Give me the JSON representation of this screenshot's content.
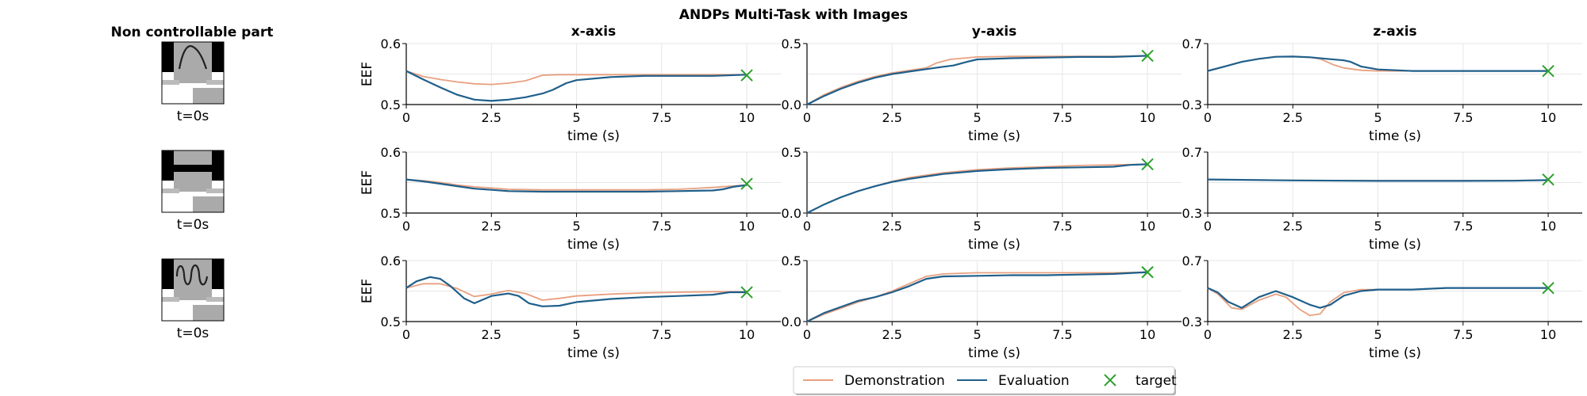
{
  "figure_title": "ANDPs Multi-Task with Images",
  "left_panel": {
    "title": "Non controllable part",
    "tiles": [
      {
        "caption": "t=0s",
        "image": "handwritten-arch"
      },
      {
        "caption": "t=0s",
        "image": "blank-letter"
      },
      {
        "caption": "t=0s",
        "image": "handwritten-wave"
      }
    ]
  },
  "colors": {
    "demonstration": "#e8a07f",
    "evaluation": "#1f5f8b",
    "target": "#2ca02c"
  },
  "legend": {
    "items": [
      {
        "label": "Demonstration",
        "key": "demonstration",
        "marker": "line"
      },
      {
        "label": "Evaluation",
        "key": "evaluation",
        "marker": "line"
      },
      {
        "label": "target",
        "key": "target",
        "marker": "x"
      }
    ]
  },
  "chart_data": [
    {
      "type": "line",
      "row": 0,
      "title": "x-axis",
      "ylabel": "EEF",
      "xlabel": "time (s)",
      "xlim": [
        0,
        11
      ],
      "ylim": [
        0.5,
        0.6
      ],
      "xticks": [
        "0",
        "2.5",
        "5",
        "7.5",
        "10"
      ],
      "yticks": [
        "0.5",
        "0.6"
      ],
      "grid": true,
      "series": [
        {
          "name": "Demonstration",
          "x": [
            0,
            0.5,
            1,
            1.5,
            2,
            2.5,
            3,
            3.5,
            4,
            4.5,
            5,
            6,
            7,
            8,
            9,
            10
          ],
          "y": [
            0.555,
            0.546,
            0.541,
            0.537,
            0.534,
            0.533,
            0.535,
            0.539,
            0.548,
            0.549,
            0.549,
            0.549,
            0.549,
            0.549,
            0.549,
            0.549
          ]
        },
        {
          "name": "Evaluation",
          "x": [
            0,
            0.5,
            1,
            1.5,
            2,
            2.5,
            3,
            3.5,
            4,
            4.3,
            4.7,
            5,
            6,
            7,
            8,
            9,
            10
          ],
          "y": [
            0.555,
            0.541,
            0.528,
            0.516,
            0.508,
            0.506,
            0.508,
            0.512,
            0.518,
            0.524,
            0.535,
            0.54,
            0.545,
            0.547,
            0.547,
            0.547,
            0.549
          ]
        }
      ],
      "target": {
        "x": 10,
        "y": 0.548
      }
    },
    {
      "type": "line",
      "row": 0,
      "title": "y-axis",
      "xlabel": "time (s)",
      "xlim": [
        0,
        11
      ],
      "ylim": [
        0.0,
        0.5
      ],
      "xticks": [
        "0",
        "2.5",
        "5",
        "7.5",
        "10"
      ],
      "yticks": [
        "0.0",
        "0.5"
      ],
      "grid": true,
      "series": [
        {
          "name": "Demonstration",
          "x": [
            0,
            0.5,
            1,
            1.5,
            2,
            2.5,
            3,
            3.5,
            3.8,
            4.2,
            5,
            6,
            7,
            8,
            9,
            10
          ],
          "y": [
            0.0,
            0.08,
            0.14,
            0.19,
            0.23,
            0.26,
            0.28,
            0.3,
            0.34,
            0.37,
            0.39,
            0.395,
            0.395,
            0.395,
            0.395,
            0.4
          ]
        },
        {
          "name": "Evaluation",
          "x": [
            0,
            0.5,
            1,
            1.5,
            2,
            2.5,
            3,
            3.5,
            4,
            4.3,
            4.7,
            5,
            6,
            7,
            8,
            9,
            10
          ],
          "y": [
            0.0,
            0.07,
            0.13,
            0.18,
            0.22,
            0.25,
            0.27,
            0.29,
            0.31,
            0.32,
            0.35,
            0.37,
            0.38,
            0.385,
            0.39,
            0.39,
            0.4
          ]
        }
      ],
      "target": {
        "x": 10,
        "y": 0.4
      }
    },
    {
      "type": "line",
      "row": 0,
      "title": "z-axis",
      "xlabel": "time (s)",
      "xlim": [
        0,
        11
      ],
      "ylim": [
        0.3,
        0.7
      ],
      "xticks": [
        "0",
        "2.5",
        "5",
        "7.5",
        "10"
      ],
      "yticks": [
        "0.3",
        "0.7"
      ],
      "grid": true,
      "series": [
        {
          "name": "Demonstration",
          "x": [
            0,
            0.5,
            1,
            1.5,
            2,
            2.5,
            3,
            3.3,
            3.7,
            4,
            4.5,
            5,
            6,
            7,
            8,
            9,
            10
          ],
          "y": [
            0.52,
            0.55,
            0.58,
            0.6,
            0.613,
            0.615,
            0.61,
            0.6,
            0.56,
            0.54,
            0.525,
            0.52,
            0.52,
            0.52,
            0.52,
            0.52,
            0.52
          ]
        },
        {
          "name": "Evaluation",
          "x": [
            0,
            0.5,
            1,
            1.5,
            2,
            2.5,
            3,
            3.5,
            4,
            4.2,
            4.5,
            5,
            6,
            7,
            8,
            9,
            10
          ],
          "y": [
            0.52,
            0.55,
            0.58,
            0.6,
            0.613,
            0.615,
            0.61,
            0.6,
            0.59,
            0.58,
            0.55,
            0.53,
            0.52,
            0.52,
            0.52,
            0.52,
            0.52
          ]
        }
      ],
      "target": {
        "x": 10,
        "y": 0.52
      }
    },
    {
      "type": "line",
      "row": 1,
      "title": "",
      "ylabel": "EEF",
      "xlabel": "time (s)",
      "xlim": [
        0,
        11
      ],
      "ylim": [
        0.5,
        0.6
      ],
      "xticks": [
        "0",
        "2.5",
        "5",
        "7.5",
        "10"
      ],
      "yticks": [
        "0.5",
        "0.6"
      ],
      "grid": true,
      "series": [
        {
          "name": "Demonstration",
          "x": [
            0,
            0.5,
            1,
            1.5,
            2,
            2.5,
            3,
            4,
            5,
            6,
            7,
            8,
            9,
            10
          ],
          "y": [
            0.555,
            0.553,
            0.55,
            0.546,
            0.543,
            0.541,
            0.539,
            0.538,
            0.538,
            0.538,
            0.538,
            0.539,
            0.542,
            0.546
          ]
        },
        {
          "name": "Evaluation",
          "x": [
            0,
            0.5,
            1,
            1.5,
            2,
            2.5,
            3,
            4,
            5,
            6,
            7,
            8,
            9,
            9.3,
            9.6,
            10
          ],
          "y": [
            0.555,
            0.552,
            0.548,
            0.544,
            0.54,
            0.538,
            0.536,
            0.535,
            0.535,
            0.535,
            0.535,
            0.536,
            0.537,
            0.539,
            0.543,
            0.546
          ]
        }
      ],
      "target": {
        "x": 10,
        "y": 0.548
      }
    },
    {
      "type": "line",
      "row": 1,
      "title": "",
      "xlabel": "time (s)",
      "xlim": [
        0,
        11
      ],
      "ylim": [
        0.0,
        0.5
      ],
      "xticks": [
        "0",
        "2.5",
        "5",
        "7.5",
        "10"
      ],
      "yticks": [
        "0.0",
        "0.5"
      ],
      "grid": true,
      "series": [
        {
          "name": "Demonstration",
          "x": [
            0,
            0.5,
            1,
            1.5,
            2,
            2.5,
            3,
            4,
            5,
            6,
            7,
            8,
            9,
            10
          ],
          "y": [
            0.0,
            0.07,
            0.13,
            0.18,
            0.22,
            0.26,
            0.29,
            0.33,
            0.355,
            0.37,
            0.38,
            0.39,
            0.395,
            0.4
          ]
        },
        {
          "name": "Evaluation",
          "x": [
            0,
            0.5,
            1,
            1.5,
            2,
            2.5,
            3,
            4,
            5,
            6,
            7,
            8,
            9,
            9.5,
            10
          ],
          "y": [
            0.0,
            0.07,
            0.13,
            0.18,
            0.22,
            0.255,
            0.28,
            0.32,
            0.345,
            0.36,
            0.37,
            0.375,
            0.38,
            0.395,
            0.4
          ]
        }
      ],
      "target": {
        "x": 10,
        "y": 0.4
      }
    },
    {
      "type": "line",
      "row": 1,
      "title": "",
      "xlabel": "time (s)",
      "xlim": [
        0,
        11
      ],
      "ylim": [
        0.3,
        0.7
      ],
      "xticks": [
        "0",
        "2.5",
        "5",
        "7.5",
        "10"
      ],
      "yticks": [
        "0.3",
        "0.7"
      ],
      "grid": true,
      "series": [
        {
          "name": "Demonstration",
          "x": [
            0,
            2.5,
            5,
            7.5,
            10
          ],
          "y": [
            0.52,
            0.515,
            0.512,
            0.512,
            0.515
          ]
        },
        {
          "name": "Evaluation",
          "x": [
            0,
            2.5,
            5,
            7.5,
            9,
            10
          ],
          "y": [
            0.52,
            0.514,
            0.511,
            0.511,
            0.512,
            0.516
          ]
        }
      ],
      "target": {
        "x": 10,
        "y": 0.52
      }
    },
    {
      "type": "line",
      "row": 2,
      "title": "",
      "ylabel": "EEF",
      "xlabel": "time (s)",
      "xlim": [
        0,
        11
      ],
      "ylim": [
        0.5,
        0.6
      ],
      "xticks": [
        "0",
        "2.5",
        "5",
        "7.5",
        "10"
      ],
      "yticks": [
        "0.5",
        "0.6"
      ],
      "grid": true,
      "series": [
        {
          "name": "Demonstration",
          "x": [
            0,
            0.5,
            1,
            1.5,
            2,
            2.5,
            3,
            3.5,
            4,
            4.5,
            5,
            6,
            7,
            8,
            9,
            10
          ],
          "y": [
            0.555,
            0.562,
            0.562,
            0.554,
            0.541,
            0.545,
            0.551,
            0.546,
            0.535,
            0.538,
            0.542,
            0.545,
            0.547,
            0.548,
            0.549,
            0.549
          ]
        },
        {
          "name": "Evaluation",
          "x": [
            0,
            0.3,
            0.7,
            1,
            1.3,
            1.7,
            2,
            2.5,
            3,
            3.3,
            3.6,
            4,
            4.5,
            5,
            6,
            7,
            8,
            9,
            9.5,
            10
          ],
          "y": [
            0.555,
            0.566,
            0.573,
            0.57,
            0.558,
            0.538,
            0.53,
            0.542,
            0.546,
            0.542,
            0.53,
            0.525,
            0.526,
            0.532,
            0.537,
            0.54,
            0.542,
            0.544,
            0.548,
            0.548
          ]
        }
      ],
      "target": {
        "x": 10,
        "y": 0.548
      }
    },
    {
      "type": "line",
      "row": 2,
      "title": "",
      "xlabel": "time (s)",
      "xlim": [
        0,
        11
      ],
      "ylim": [
        0.0,
        0.5
      ],
      "xticks": [
        "0",
        "2.5",
        "5",
        "7.5",
        "10"
      ],
      "yticks": [
        "0.0",
        "0.5"
      ],
      "grid": true,
      "series": [
        {
          "name": "Demonstration",
          "x": [
            0,
            0.5,
            1,
            1.5,
            2,
            2.5,
            3,
            3.5,
            4,
            5,
            6,
            7,
            8,
            9,
            10
          ],
          "y": [
            0.0,
            0.06,
            0.11,
            0.16,
            0.2,
            0.25,
            0.31,
            0.37,
            0.39,
            0.4,
            0.4,
            0.4,
            0.4,
            0.4,
            0.405
          ]
        },
        {
          "name": "Evaluation",
          "x": [
            0,
            0.5,
            1,
            1.5,
            2,
            2.5,
            3,
            3.5,
            4,
            5,
            6,
            7,
            8,
            9,
            10
          ],
          "y": [
            0.0,
            0.07,
            0.12,
            0.17,
            0.2,
            0.24,
            0.29,
            0.35,
            0.37,
            0.375,
            0.38,
            0.38,
            0.385,
            0.39,
            0.405
          ]
        }
      ],
      "target": {
        "x": 10,
        "y": 0.405
      }
    },
    {
      "type": "line",
      "row": 2,
      "title": "",
      "xlabel": "time (s)",
      "xlim": [
        0,
        11
      ],
      "ylim": [
        0.3,
        0.7
      ],
      "xticks": [
        "0",
        "2.5",
        "5",
        "7.5",
        "10"
      ],
      "yticks": [
        "0.3",
        "0.7"
      ],
      "grid": true,
      "series": [
        {
          "name": "Demonstration",
          "x": [
            0,
            0.3,
            0.7,
            1,
            1.5,
            2,
            2.3,
            2.7,
            3,
            3.3,
            3.6,
            4,
            4.5,
            5,
            6,
            7,
            8,
            9,
            10
          ],
          "y": [
            0.52,
            0.48,
            0.39,
            0.38,
            0.44,
            0.48,
            0.46,
            0.38,
            0.34,
            0.35,
            0.43,
            0.49,
            0.51,
            0.51,
            0.51,
            0.52,
            0.52,
            0.52,
            0.52
          ]
        },
        {
          "name": "Evaluation",
          "x": [
            0,
            0.3,
            0.6,
            1,
            1.5,
            2,
            2.5,
            3,
            3.3,
            3.6,
            4,
            4.5,
            5,
            6,
            7,
            8,
            9,
            10
          ],
          "y": [
            0.52,
            0.49,
            0.43,
            0.39,
            0.46,
            0.5,
            0.46,
            0.41,
            0.39,
            0.41,
            0.47,
            0.5,
            0.51,
            0.51,
            0.52,
            0.52,
            0.52,
            0.52
          ]
        }
      ],
      "target": {
        "x": 10,
        "y": 0.52
      }
    }
  ]
}
